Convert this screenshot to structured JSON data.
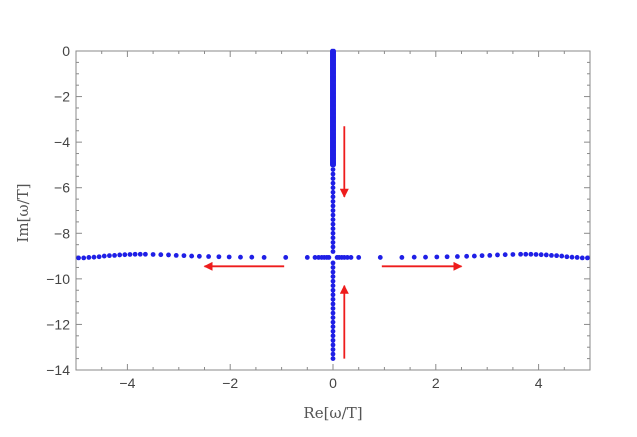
{
  "chart_data": {
    "type": "scatter",
    "title": "",
    "xlabel": "Re[ω/T]",
    "ylabel": "Im[ω/T]",
    "xlim": [
      -5,
      5
    ],
    "ylim": [
      -14,
      0
    ],
    "x_ticks": [
      -4,
      -2,
      0,
      2,
      4
    ],
    "y_ticks": [
      0,
      -2,
      -4,
      -6,
      -8,
      -10,
      -12,
      -14
    ],
    "x_tick_labels": [
      "−4",
      "−2",
      "0",
      "2",
      "4"
    ],
    "y_tick_labels": [
      "0",
      "−2",
      "−4",
      "−6",
      "−8",
      "−10",
      "−12",
      "−14"
    ],
    "grid": false,
    "point_color": "#1f1fe6",
    "arrow_color": "#ee1c1c",
    "series": [
      {
        "values_horizontal_im": -9.05,
        "x": [
          -4.95,
          -4.85,
          -4.75,
          -4.65,
          -4.55,
          -4.45,
          -4.35,
          -4.25,
          -4.15,
          -4.05,
          -3.95,
          -3.85,
          -3.75,
          -3.65,
          -3.5,
          -3.35,
          -3.2,
          -3.05,
          -2.9,
          -2.75,
          -2.6,
          -2.42,
          -2.22,
          -2.02,
          -1.8,
          -1.58,
          -1.34,
          -0.92,
          -0.5,
          -0.35,
          -0.28,
          -0.22,
          -0.17,
          -0.12,
          -0.08,
          0.08,
          0.12,
          0.17,
          0.22,
          0.28,
          0.35,
          0.5,
          0.92,
          1.34,
          1.58,
          1.8,
          2.02,
          2.22,
          2.42,
          2.6,
          2.75,
          2.9,
          3.05,
          3.2,
          3.35,
          3.5,
          3.65,
          3.75,
          3.85,
          3.95,
          4.05,
          4.15,
          4.25,
          4.35,
          4.45,
          4.55,
          4.65,
          4.75,
          4.85,
          4.95
        ],
        "y": [
          -9.08,
          -9.08,
          -9.06,
          -9.05,
          -9.03,
          -9.0,
          -8.98,
          -8.97,
          -8.95,
          -8.94,
          -8.93,
          -8.92,
          -8.92,
          -8.92,
          -8.93,
          -8.94,
          -8.95,
          -8.97,
          -8.98,
          -9.0,
          -9.01,
          -9.02,
          -9.03,
          -9.04,
          -9.05,
          -9.05,
          -9.06,
          -9.06,
          -9.06,
          -9.06,
          -9.06,
          -9.06,
          -9.06,
          -9.06,
          -9.06,
          -9.06,
          -9.06,
          -9.06,
          -9.06,
          -9.06,
          -9.06,
          -9.06,
          -9.06,
          -9.06,
          -9.05,
          -9.05,
          -9.04,
          -9.03,
          -9.02,
          -9.01,
          -9.0,
          -8.98,
          -8.97,
          -8.95,
          -8.94,
          -8.93,
          -8.92,
          -8.92,
          -8.92,
          -8.93,
          -8.94,
          -8.95,
          -8.97,
          -8.98,
          -9.0,
          -9.03,
          -9.05,
          -9.06,
          -9.08,
          -9.08
        ]
      }
    ],
    "vertical_column": {
      "x": 0,
      "y_dense_top": [
        0,
        -5.0
      ],
      "y_sparse": [
        -5.2,
        -5.4,
        -5.6,
        -5.8,
        -6.0,
        -6.2,
        -6.4,
        -6.6,
        -6.8,
        -7.0,
        -7.2,
        -7.4,
        -7.6,
        -7.8,
        -8.0,
        -8.2,
        -8.4,
        -8.6,
        -8.8,
        -9.3,
        -9.5,
        -9.7,
        -9.9,
        -10.1,
        -10.3,
        -10.5,
        -10.7,
        -10.9,
        -11.1,
        -11.3,
        -11.5,
        -11.7,
        -11.9,
        -12.1,
        -12.3,
        -12.5,
        -12.7,
        -12.9,
        -13.1,
        -13.3,
        -13.5
      ]
    },
    "arrows": [
      {
        "from": [
          -0.95,
          -9.45
        ],
        "to": [
          -2.5,
          -9.45
        ]
      },
      {
        "from": [
          0.95,
          -9.45
        ],
        "to": [
          2.5,
          -9.45
        ]
      },
      {
        "from": [
          0.22,
          -3.3
        ],
        "to": [
          0.22,
          -6.4
        ]
      },
      {
        "from": [
          0.22,
          -13.5
        ],
        "to": [
          0.22,
          -10.3
        ]
      }
    ]
  }
}
